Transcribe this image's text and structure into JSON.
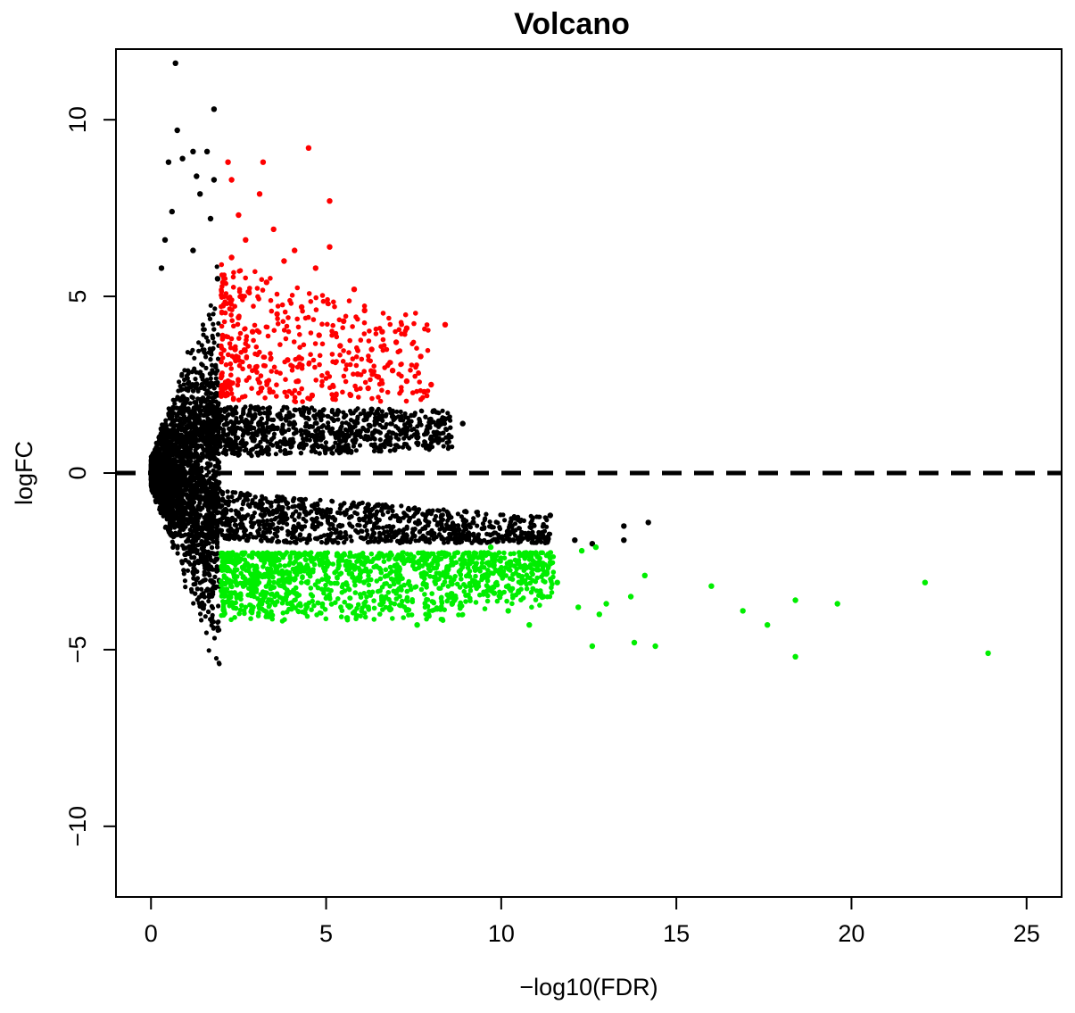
{
  "chart_data": {
    "type": "scatter",
    "title": "Volcano",
    "xlabel": "−log10(FDR)",
    "ylabel": "logFC",
    "xlim": [
      -1,
      26
    ],
    "ylim": [
      -12,
      12
    ],
    "x_ticks": [
      0,
      5,
      10,
      15,
      20,
      25
    ],
    "y_ticks": [
      -10,
      -5,
      0,
      5,
      10
    ],
    "x_tick_labels": [
      "0",
      "5",
      "10",
      "15",
      "20",
      "25"
    ],
    "y_tick_labels": [
      "−10",
      "−5",
      "0",
      "5",
      "10"
    ],
    "reference_line": {
      "y": 0,
      "style": "dashed",
      "color": "#000000"
    },
    "grid": false,
    "legend": "none",
    "colors": {
      "up": "#ff0000",
      "down": "#00ee00",
      "not_significant": "#000000"
    },
    "thresholds": {
      "neg_log10_fdr": 2,
      "abs_logFC": 2
    },
    "series": [
      {
        "key": "up",
        "color": "#ff0000",
        "points": [
          [
            2.2,
            8.8
          ],
          [
            3.2,
            8.8
          ],
          [
            4.5,
            9.2
          ],
          [
            2.3,
            8.3
          ],
          [
            3.1,
            7.9
          ],
          [
            5.1,
            7.7
          ],
          [
            2.5,
            7.3
          ],
          [
            3.5,
            6.9
          ],
          [
            2.7,
            6.6
          ],
          [
            4.1,
            6.3
          ],
          [
            5.1,
            6.4
          ],
          [
            3.8,
            6.0
          ],
          [
            4.7,
            5.8
          ],
          [
            2.3,
            6.1
          ],
          [
            3.3,
            5.4
          ],
          [
            5.8,
            5.2
          ],
          [
            2.6,
            5.0
          ],
          [
            4.3,
            4.7
          ],
          [
            3.6,
            4.5
          ],
          [
            6.1,
            4.6
          ],
          [
            5.5,
            4.3
          ],
          [
            7.3,
            4.1
          ],
          [
            8.4,
            4.2
          ],
          [
            6.6,
            4.0
          ],
          [
            2.9,
            4.0
          ],
          [
            4.8,
            3.9
          ],
          [
            7.0,
            3.7
          ],
          [
            6.3,
            3.5
          ],
          [
            5.4,
            3.6
          ],
          [
            2.4,
            3.5
          ],
          [
            7.7,
            3.3
          ],
          [
            6.9,
            2.9
          ],
          [
            5.9,
            2.8
          ],
          [
            7.3,
            2.6
          ],
          [
            7.8,
            2.3
          ],
          [
            8.0,
            2.5
          ],
          [
            6.2,
            2.4
          ],
          [
            4.6,
            2.2
          ],
          [
            5.2,
            2.1
          ],
          [
            3.4,
            2.3
          ],
          [
            2.2,
            2.6
          ],
          [
            3.0,
            3.0
          ],
          [
            2.5,
            4.4
          ],
          [
            3.9,
            3.2
          ],
          [
            4.2,
            2.6
          ],
          [
            5.7,
            2.2
          ]
        ]
      },
      {
        "key": "down",
        "color": "#00ee00",
        "points": [
          [
            23.9,
            -5.1
          ],
          [
            22.1,
            -3.1
          ],
          [
            19.6,
            -3.7
          ],
          [
            18.4,
            -3.6
          ],
          [
            18.4,
            -5.2
          ],
          [
            17.6,
            -4.3
          ],
          [
            16.9,
            -3.9
          ],
          [
            16.0,
            -3.2
          ],
          [
            14.4,
            -4.9
          ],
          [
            13.8,
            -4.8
          ],
          [
            13.7,
            -3.5
          ],
          [
            14.1,
            -2.9
          ],
          [
            13.0,
            -3.7
          ],
          [
            12.8,
            -4.0
          ],
          [
            12.6,
            -4.9
          ],
          [
            12.7,
            -2.1
          ],
          [
            12.2,
            -3.8
          ],
          [
            11.6,
            -3.1
          ],
          [
            11.2,
            -3.5
          ],
          [
            10.8,
            -4.3
          ],
          [
            10.5,
            -2.9
          ],
          [
            9.8,
            -3.4
          ],
          [
            9.2,
            -2.4
          ],
          [
            8.6,
            -3.7
          ],
          [
            7.6,
            -4.3
          ],
          [
            6.2,
            -3.8
          ],
          [
            5.6,
            -4.1
          ],
          [
            4.0,
            -3.7
          ],
          [
            3.0,
            -3.3
          ],
          [
            2.3,
            -3.4
          ],
          [
            2.2,
            -2.3
          ],
          [
            2.7,
            -2.6
          ],
          [
            4.5,
            -2.3
          ],
          [
            6.5,
            -2.4
          ],
          [
            8.0,
            -2.6
          ],
          [
            9.7,
            -2.1
          ],
          [
            11.4,
            -2.4
          ],
          [
            12.3,
            -2.2
          ],
          [
            10.2,
            -3.9
          ],
          [
            7.1,
            -3.0
          ],
          [
            5.0,
            -3.0
          ],
          [
            3.5,
            -2.5
          ]
        ]
      },
      {
        "key": "not_significant",
        "color": "#000000",
        "points": [
          [
            0.7,
            11.6
          ],
          [
            1.8,
            10.3
          ],
          [
            0.75,
            9.7
          ],
          [
            1.6,
            9.1
          ],
          [
            1.2,
            9.1
          ],
          [
            0.9,
            8.9
          ],
          [
            1.3,
            8.4
          ],
          [
            0.5,
            8.8
          ],
          [
            1.8,
            8.3
          ],
          [
            1.4,
            7.9
          ],
          [
            0.6,
            7.4
          ],
          [
            1.7,
            7.2
          ],
          [
            0.4,
            6.6
          ],
          [
            1.2,
            6.3
          ],
          [
            0.3,
            5.8
          ],
          [
            1.9,
            5.5
          ],
          [
            8.9,
            1.4
          ],
          [
            8.3,
            1.5
          ],
          [
            7.3,
            1.2
          ],
          [
            6.9,
            1.6
          ],
          [
            6.3,
            1.8
          ],
          [
            5.7,
            1.3
          ],
          [
            4.9,
            1.0
          ],
          [
            14.2,
            -1.4
          ],
          [
            13.5,
            -1.5
          ],
          [
            13.5,
            -1.9
          ],
          [
            12.6,
            -2.0
          ],
          [
            12.1,
            -1.9
          ],
          [
            11.4,
            -1.2
          ],
          [
            10.3,
            -1.5
          ],
          [
            9.2,
            -1.4
          ],
          [
            8.5,
            -1.2
          ],
          [
            7.6,
            -1.1
          ],
          [
            6.2,
            -0.9
          ],
          [
            0.2,
            -0.3
          ],
          [
            0.15,
            0.2
          ],
          [
            1.9,
            -2.7
          ]
        ]
      }
    ]
  }
}
